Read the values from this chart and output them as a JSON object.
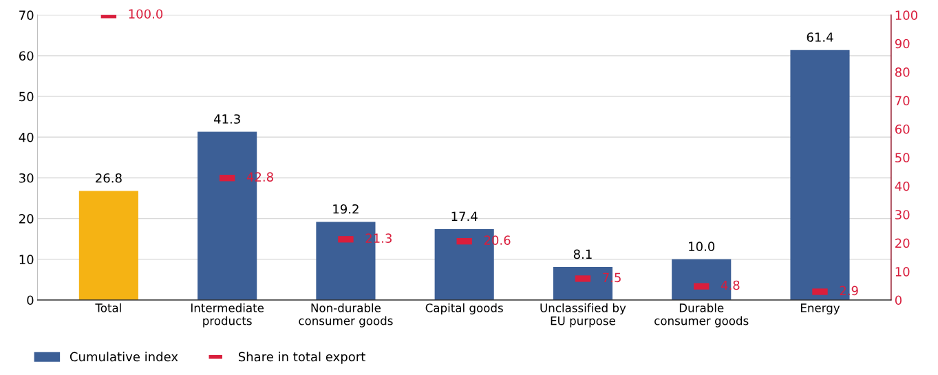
{
  "chart_data": {
    "type": "bar",
    "categories": [
      "Total",
      "Intermediate\nproducts",
      "Non-durable\nconsumer goods",
      "Capital goods",
      "Unclassified by\nEU purpose",
      "Durable\nconsumer goods",
      "Energy"
    ],
    "series": [
      {
        "name": "Cumulative index",
        "color": "#3c5f96",
        "colors": [
          "#f5b314",
          "#3c5f96",
          "#3c5f96",
          "#3c5f96",
          "#3c5f96",
          "#3c5f96",
          "#3c5f96"
        ],
        "values": [
          26.8,
          41.3,
          19.2,
          17.4,
          8.1,
          10.0,
          61.4
        ],
        "value_labels": [
          "26.8",
          "41.3",
          "19.2",
          "17.4",
          "8.1",
          "10.0",
          "61.4"
        ]
      },
      {
        "name": "Share in total export",
        "type": "scatter",
        "axis": "y2",
        "color": "#d91e3c",
        "values": [
          100.0,
          42.8,
          21.3,
          20.6,
          7.5,
          4.8,
          2.9
        ],
        "value_labels": [
          "100.0",
          "42.8",
          "21.3",
          "20.6",
          "7.5",
          "4.8",
          "2.9"
        ]
      }
    ],
    "ylim": [
      0,
      70
    ],
    "yticks": [
      0,
      10,
      20,
      30,
      40,
      50,
      60,
      70
    ],
    "y2lim": [
      0,
      100
    ],
    "y2ticks": [
      0,
      10,
      20,
      30,
      40,
      50,
      60,
      70,
      80,
      90,
      100
    ],
    "grid": "y",
    "legend": "bottom left"
  }
}
